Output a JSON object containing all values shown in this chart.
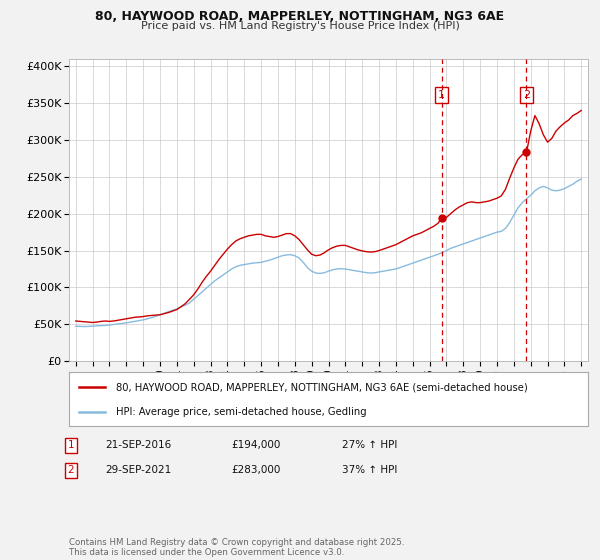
{
  "title1": "80, HAYWOOD ROAD, MAPPERLEY, NOTTINGHAM, NG3 6AE",
  "title2": "Price paid vs. HM Land Registry's House Price Index (HPI)",
  "legend_label1": "80, HAYWOOD ROAD, MAPPERLEY, NOTTINGHAM, NG3 6AE (semi-detached house)",
  "legend_label2": "HPI: Average price, semi-detached house, Gedling",
  "color_price": "#cc0000",
  "color_hpi": "#88bbdd",
  "annotation1_label": "1",
  "annotation1_date": "21-SEP-2016",
  "annotation1_price": "£194,000",
  "annotation1_hpi": "27% ↑ HPI",
  "annotation1_year": 2016.72,
  "annotation1_value": 194000,
  "annotation2_label": "2",
  "annotation2_date": "29-SEP-2021",
  "annotation2_price": "£283,000",
  "annotation2_hpi": "37% ↑ HPI",
  "annotation2_year": 2021.75,
  "annotation2_value": 283000,
  "yticks": [
    0,
    50000,
    100000,
    150000,
    200000,
    250000,
    300000,
    350000,
    400000
  ],
  "ytick_labels": [
    "£0",
    "£50K",
    "£100K",
    "£150K",
    "£200K",
    "£250K",
    "£300K",
    "£350K",
    "£400K"
  ],
  "xmin": 1994.6,
  "xmax": 2025.4,
  "ymin": 0,
  "ymax": 410000,
  "footnote": "Contains HM Land Registry data © Crown copyright and database right 2025.\nThis data is licensed under the Open Government Licence v3.0.",
  "background_color": "#f2f2f2",
  "plot_bg_color": "#ffffff",
  "grid_color": "#cccccc",
  "hpi_data": [
    [
      1995.0,
      47500
    ],
    [
      1995.25,
      47200
    ],
    [
      1995.5,
      47000
    ],
    [
      1995.75,
      47100
    ],
    [
      1996.0,
      47500
    ],
    [
      1996.25,
      48000
    ],
    [
      1996.5,
      48200
    ],
    [
      1996.75,
      48500
    ],
    [
      1997.0,
      49000
    ],
    [
      1997.25,
      49800
    ],
    [
      1997.5,
      50500
    ],
    [
      1997.75,
      51200
    ],
    [
      1998.0,
      52000
    ],
    [
      1998.25,
      53000
    ],
    [
      1998.5,
      54000
    ],
    [
      1998.75,
      55000
    ],
    [
      1999.0,
      56000
    ],
    [
      1999.25,
      57500
    ],
    [
      1999.5,
      59000
    ],
    [
      1999.75,
      61000
    ],
    [
      2000.0,
      63000
    ],
    [
      2000.25,
      65000
    ],
    [
      2000.5,
      67000
    ],
    [
      2000.75,
      69000
    ],
    [
      2001.0,
      71000
    ],
    [
      2001.25,
      73500
    ],
    [
      2001.5,
      76000
    ],
    [
      2001.75,
      79000
    ],
    [
      2002.0,
      84000
    ],
    [
      2002.25,
      89000
    ],
    [
      2002.5,
      94000
    ],
    [
      2002.75,
      99000
    ],
    [
      2003.0,
      104000
    ],
    [
      2003.25,
      109000
    ],
    [
      2003.5,
      113000
    ],
    [
      2003.75,
      117000
    ],
    [
      2004.0,
      121000
    ],
    [
      2004.25,
      125000
    ],
    [
      2004.5,
      128000
    ],
    [
      2004.75,
      130000
    ],
    [
      2005.0,
      131000
    ],
    [
      2005.25,
      132000
    ],
    [
      2005.5,
      133000
    ],
    [
      2005.75,
      133500
    ],
    [
      2006.0,
      134000
    ],
    [
      2006.25,
      135500
    ],
    [
      2006.5,
      137000
    ],
    [
      2006.75,
      139000
    ],
    [
      2007.0,
      141000
    ],
    [
      2007.25,
      143000
    ],
    [
      2007.5,
      144000
    ],
    [
      2007.75,
      144500
    ],
    [
      2008.0,
      143000
    ],
    [
      2008.25,
      140000
    ],
    [
      2008.5,
      134000
    ],
    [
      2008.75,
      127000
    ],
    [
      2009.0,
      122000
    ],
    [
      2009.25,
      119500
    ],
    [
      2009.5,
      119000
    ],
    [
      2009.75,
      120000
    ],
    [
      2010.0,
      122000
    ],
    [
      2010.25,
      124000
    ],
    [
      2010.5,
      125000
    ],
    [
      2010.75,
      125500
    ],
    [
      2011.0,
      125000
    ],
    [
      2011.25,
      124000
    ],
    [
      2011.5,
      123000
    ],
    [
      2011.75,
      122000
    ],
    [
      2012.0,
      121000
    ],
    [
      2012.25,
      120000
    ],
    [
      2012.5,
      119500
    ],
    [
      2012.75,
      120000
    ],
    [
      2013.0,
      121000
    ],
    [
      2013.25,
      122000
    ],
    [
      2013.5,
      123000
    ],
    [
      2013.75,
      124000
    ],
    [
      2014.0,
      125000
    ],
    [
      2014.25,
      127000
    ],
    [
      2014.5,
      129000
    ],
    [
      2014.75,
      131000
    ],
    [
      2015.0,
      133000
    ],
    [
      2015.25,
      135000
    ],
    [
      2015.5,
      137000
    ],
    [
      2015.75,
      139000
    ],
    [
      2016.0,
      141000
    ],
    [
      2016.25,
      143000
    ],
    [
      2016.5,
      145000
    ],
    [
      2016.75,
      147000
    ],
    [
      2017.0,
      150000
    ],
    [
      2017.25,
      153000
    ],
    [
      2017.5,
      155000
    ],
    [
      2017.75,
      157000
    ],
    [
      2018.0,
      159000
    ],
    [
      2018.25,
      161000
    ],
    [
      2018.5,
      163000
    ],
    [
      2018.75,
      165000
    ],
    [
      2019.0,
      167000
    ],
    [
      2019.25,
      169000
    ],
    [
      2019.5,
      171000
    ],
    [
      2019.75,
      173000
    ],
    [
      2020.0,
      175000
    ],
    [
      2020.25,
      176000
    ],
    [
      2020.5,
      180000
    ],
    [
      2020.75,
      188000
    ],
    [
      2021.0,
      198000
    ],
    [
      2021.25,
      208000
    ],
    [
      2021.5,
      215000
    ],
    [
      2021.75,
      220000
    ],
    [
      2022.0,
      225000
    ],
    [
      2022.25,
      231000
    ],
    [
      2022.5,
      235000
    ],
    [
      2022.75,
      237000
    ],
    [
      2023.0,
      235000
    ],
    [
      2023.25,
      232000
    ],
    [
      2023.5,
      231000
    ],
    [
      2023.75,
      232000
    ],
    [
      2024.0,
      234000
    ],
    [
      2024.25,
      237000
    ],
    [
      2024.5,
      240000
    ],
    [
      2024.75,
      244000
    ],
    [
      2025.0,
      247000
    ]
  ],
  "price_data": [
    [
      1995.0,
      54500
    ],
    [
      1995.25,
      54000
    ],
    [
      1995.5,
      53500
    ],
    [
      1995.75,
      53000
    ],
    [
      1996.0,
      52500
    ],
    [
      1996.25,
      53000
    ],
    [
      1996.5,
      54000
    ],
    [
      1996.75,
      54500
    ],
    [
      1997.0,
      54000
    ],
    [
      1997.25,
      54500
    ],
    [
      1997.5,
      55500
    ],
    [
      1997.75,
      56500
    ],
    [
      1998.0,
      57500
    ],
    [
      1998.25,
      58500
    ],
    [
      1998.5,
      59500
    ],
    [
      1998.75,
      60000
    ],
    [
      1999.0,
      60500
    ],
    [
      1999.25,
      61500
    ],
    [
      1999.5,
      62000
    ],
    [
      1999.75,
      62500
    ],
    [
      2000.0,
      63000
    ],
    [
      2000.25,
      64500
    ],
    [
      2000.5,
      66000
    ],
    [
      2000.75,
      68000
    ],
    [
      2001.0,
      70000
    ],
    [
      2001.25,
      74000
    ],
    [
      2001.5,
      78000
    ],
    [
      2001.75,
      84000
    ],
    [
      2002.0,
      90000
    ],
    [
      2002.25,
      98000
    ],
    [
      2002.5,
      107000
    ],
    [
      2002.75,
      115000
    ],
    [
      2003.0,
      122000
    ],
    [
      2003.25,
      130000
    ],
    [
      2003.5,
      138000
    ],
    [
      2003.75,
      145000
    ],
    [
      2004.0,
      152000
    ],
    [
      2004.25,
      158000
    ],
    [
      2004.5,
      163000
    ],
    [
      2004.75,
      166000
    ],
    [
      2005.0,
      168000
    ],
    [
      2005.25,
      170000
    ],
    [
      2005.5,
      171000
    ],
    [
      2005.75,
      172000
    ],
    [
      2006.0,
      172000
    ],
    [
      2006.25,
      170000
    ],
    [
      2006.5,
      169000
    ],
    [
      2006.75,
      168000
    ],
    [
      2007.0,
      169000
    ],
    [
      2007.25,
      171000
    ],
    [
      2007.5,
      173000
    ],
    [
      2007.75,
      173000
    ],
    [
      2008.0,
      170000
    ],
    [
      2008.25,
      165000
    ],
    [
      2008.5,
      158000
    ],
    [
      2008.75,
      151000
    ],
    [
      2009.0,
      145000
    ],
    [
      2009.25,
      143000
    ],
    [
      2009.5,
      144000
    ],
    [
      2009.75,
      147000
    ],
    [
      2010.0,
      151000
    ],
    [
      2010.25,
      154000
    ],
    [
      2010.5,
      156000
    ],
    [
      2010.75,
      157000
    ],
    [
      2011.0,
      157000
    ],
    [
      2011.25,
      155000
    ],
    [
      2011.5,
      153000
    ],
    [
      2011.75,
      151000
    ],
    [
      2012.0,
      149500
    ],
    [
      2012.25,
      148500
    ],
    [
      2012.5,
      148000
    ],
    [
      2012.75,
      148500
    ],
    [
      2013.0,
      150000
    ],
    [
      2013.25,
      152000
    ],
    [
      2013.5,
      154000
    ],
    [
      2013.75,
      156000
    ],
    [
      2014.0,
      158000
    ],
    [
      2014.25,
      161000
    ],
    [
      2014.5,
      164000
    ],
    [
      2014.75,
      167000
    ],
    [
      2015.0,
      170000
    ],
    [
      2015.25,
      172000
    ],
    [
      2015.5,
      174000
    ],
    [
      2015.75,
      177000
    ],
    [
      2016.0,
      180000
    ],
    [
      2016.25,
      183000
    ],
    [
      2016.5,
      187000
    ],
    [
      2016.72,
      194000
    ],
    [
      2016.75,
      192000
    ],
    [
      2017.0,
      195000
    ],
    [
      2017.25,
      200000
    ],
    [
      2017.5,
      205000
    ],
    [
      2017.75,
      209000
    ],
    [
      2018.0,
      212000
    ],
    [
      2018.25,
      215000
    ],
    [
      2018.5,
      216000
    ],
    [
      2018.75,
      215000
    ],
    [
      2019.0,
      215000
    ],
    [
      2019.25,
      216000
    ],
    [
      2019.5,
      217000
    ],
    [
      2019.75,
      219000
    ],
    [
      2020.0,
      221000
    ],
    [
      2020.25,
      224000
    ],
    [
      2020.5,
      233000
    ],
    [
      2020.75,
      248000
    ],
    [
      2021.0,
      262000
    ],
    [
      2021.25,
      274000
    ],
    [
      2021.5,
      280000
    ],
    [
      2021.75,
      283000
    ],
    [
      2022.0,
      312000
    ],
    [
      2022.25,
      333000
    ],
    [
      2022.5,
      322000
    ],
    [
      2022.75,
      307000
    ],
    [
      2023.0,
      297000
    ],
    [
      2023.25,
      302000
    ],
    [
      2023.5,
      312000
    ],
    [
      2023.75,
      318000
    ],
    [
      2024.0,
      323000
    ],
    [
      2024.25,
      327000
    ],
    [
      2024.5,
      333000
    ],
    [
      2024.75,
      336000
    ],
    [
      2025.0,
      340000
    ]
  ]
}
